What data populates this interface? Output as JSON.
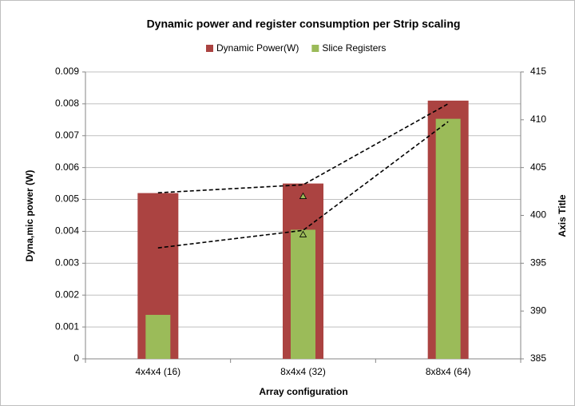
{
  "chart_data": {
    "type": "bar",
    "title": "Dynamic power and register consumption per Strip scaling",
    "x_label": "Array configuration",
    "y_label": "Dyna,mic power (W)",
    "y2_label": "Axis Title",
    "categories": [
      "4x4x4 (16)",
      "8x4x4 (32)",
      "8x8x4 (64)"
    ],
    "series": [
      {
        "name": "Dynamic Power(W)",
        "color": "#ab4341",
        "values": [
          0.0052,
          0.0055,
          0.0081
        ]
      },
      {
        "name": "Slice Registers",
        "color": "#9bbb59",
        "axis": "y2",
        "values": [
          389.6,
          398.5,
          410.1
        ]
      }
    ],
    "lines": [
      {
        "values": [
          0.00521,
          0.00546,
          0.008
        ]
      },
      {
        "values": [
          0.00348,
          0.00403,
          0.00744
        ]
      }
    ],
    "markers": [
      {
        "values": [
          null,
          0.0051,
          null
        ]
      },
      {
        "values": [
          null,
          0.0039,
          null
        ]
      }
    ],
    "ylim": [
      0,
      0.009
    ],
    "yticks": [
      0,
      0.001,
      0.002,
      0.003,
      0.004,
      0.005,
      0.006,
      0.007,
      0.008,
      0.009
    ],
    "y2lim": [
      385,
      415
    ],
    "y2ticks": [
      385,
      390,
      395,
      400,
      405,
      410,
      415
    ],
    "grid": true,
    "legend": "top"
  }
}
